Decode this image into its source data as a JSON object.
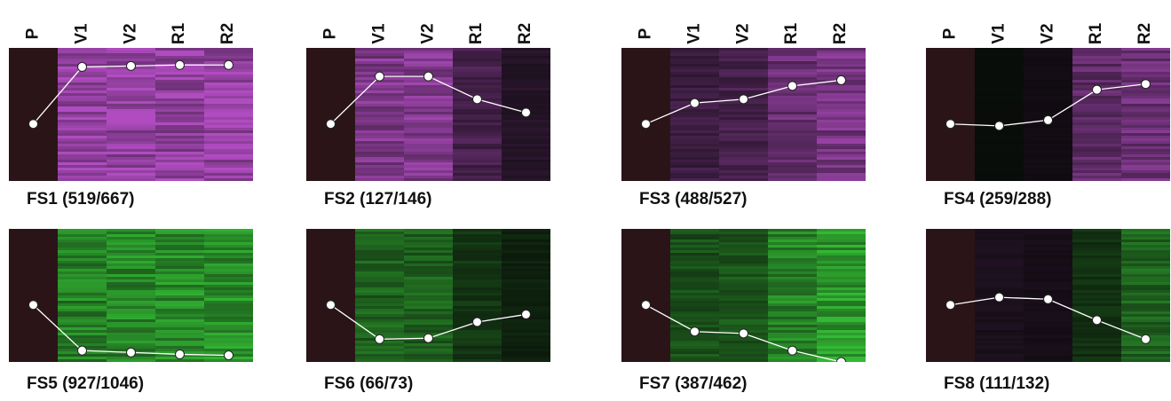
{
  "column_labels": [
    "P",
    "V1",
    "V2",
    "R1",
    "R2"
  ],
  "colors": {
    "up": "#b04cc0",
    "down": "#33b833",
    "baseline": "#2a1418",
    "point_fill": "#ffffff",
    "line": "#ffffff"
  },
  "chart_data": [
    {
      "type": "heatmap",
      "title": "FS1 (519/667)",
      "categories": [
        "P",
        "V1",
        "V2",
        "R1",
        "R2"
      ],
      "values": [
        0,
        3.0,
        3.05,
        3.1,
        3.1
      ],
      "ylim": [
        -3,
        4
      ]
    },
    {
      "type": "heatmap",
      "title": "FS2 (127/146)",
      "categories": [
        "P",
        "V1",
        "V2",
        "R1",
        "R2"
      ],
      "values": [
        0,
        2.5,
        2.5,
        1.3,
        0.6
      ],
      "ylim": [
        -3,
        4
      ]
    },
    {
      "type": "heatmap",
      "title": "FS3 (488/527)",
      "categories": [
        "P",
        "V1",
        "V2",
        "R1",
        "R2"
      ],
      "values": [
        0,
        1.1,
        1.3,
        2.0,
        2.3
      ],
      "ylim": [
        -3,
        4
      ]
    },
    {
      "type": "heatmap",
      "title": "FS4 (259/288)",
      "categories": [
        "P",
        "V1",
        "V2",
        "R1",
        "R2"
      ],
      "values": [
        0,
        -0.1,
        0.2,
        1.8,
        2.1
      ],
      "ylim": [
        -3,
        4
      ]
    },
    {
      "type": "heatmap",
      "title": "FS5 (927/1046)",
      "categories": [
        "P",
        "V1",
        "V2",
        "R1",
        "R2"
      ],
      "values": [
        0,
        -2.4,
        -2.5,
        -2.6,
        -2.65
      ],
      "ylim": [
        -3,
        4
      ]
    },
    {
      "type": "heatmap",
      "title": "FS6 (66/73)",
      "categories": [
        "P",
        "V1",
        "V2",
        "R1",
        "R2"
      ],
      "values": [
        0,
        -1.8,
        -1.75,
        -0.9,
        -0.5
      ],
      "ylim": [
        -3,
        4
      ]
    },
    {
      "type": "heatmap",
      "title": "FS7 (387/462)",
      "categories": [
        "P",
        "V1",
        "V2",
        "R1",
        "R2"
      ],
      "values": [
        0,
        -1.4,
        -1.5,
        -2.4,
        -3.0
      ],
      "ylim": [
        -3,
        4
      ]
    },
    {
      "type": "heatmap",
      "title": "FS8 (111/132)",
      "categories": [
        "P",
        "V1",
        "V2",
        "R1",
        "R2"
      ],
      "values": [
        0,
        0.4,
        0.3,
        -0.8,
        -1.8
      ],
      "ylim": [
        -3,
        4
      ]
    }
  ]
}
